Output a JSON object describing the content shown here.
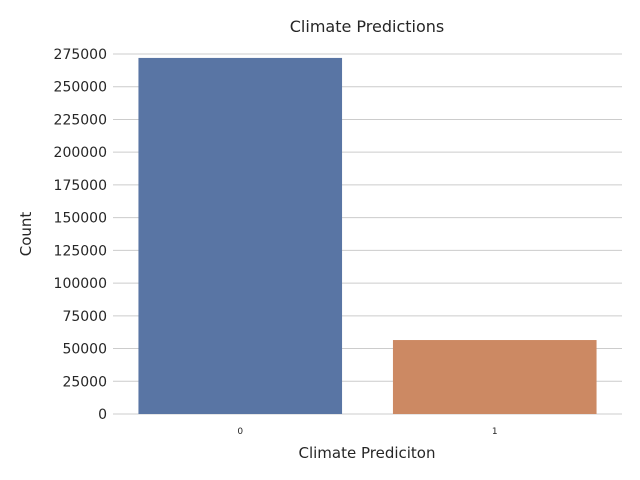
{
  "chart_data": {
    "type": "bar",
    "title": "Climate Predictions",
    "xlabel": "Climate Prediciton",
    "ylabel": "Count",
    "categories": [
      "0",
      "1"
    ],
    "values": [
      272000,
      56500
    ],
    "ylim": [
      0,
      275000
    ],
    "yticks": [
      0,
      25000,
      50000,
      75000,
      100000,
      125000,
      150000,
      175000,
      200000,
      225000,
      250000,
      275000
    ],
    "grid": "horizontal",
    "colors": [
      "#5975a4",
      "#cc8963"
    ]
  }
}
